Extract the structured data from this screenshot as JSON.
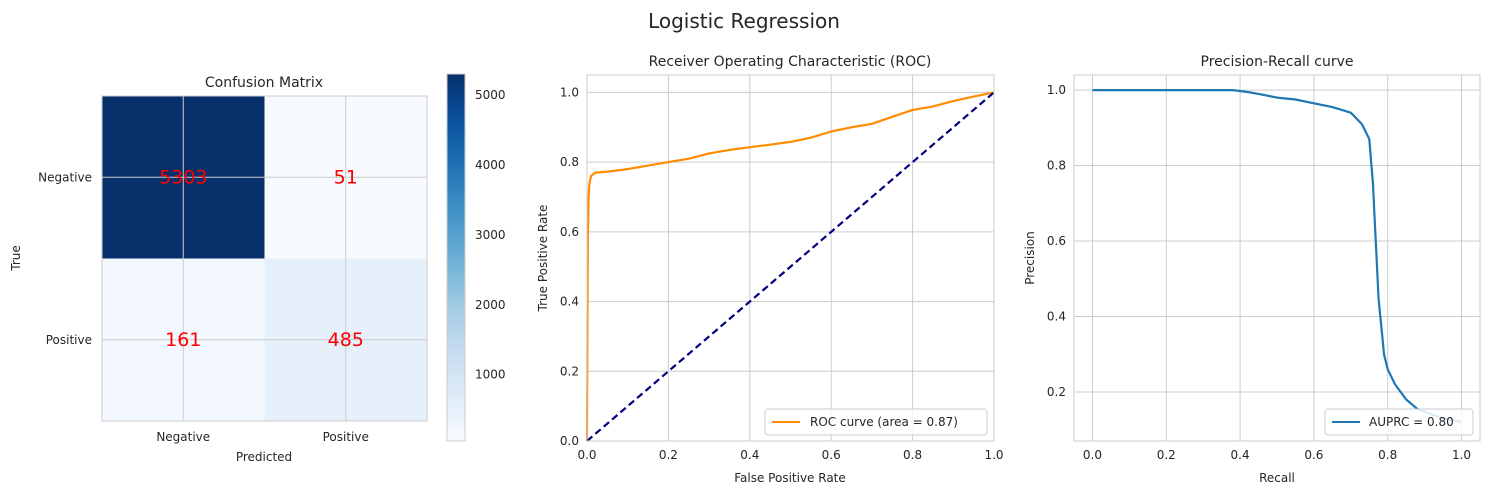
{
  "suptitle": "Logistic Regression",
  "chart_data": [
    {
      "type": "heatmap",
      "title": "Confusion Matrix",
      "xlabel": "Predicted",
      "ylabel": "True",
      "x_categories": [
        "Negative",
        "Positive"
      ],
      "y_categories": [
        "Negative",
        "Positive"
      ],
      "values": [
        [
          5303,
          51
        ],
        [
          161,
          485
        ]
      ],
      "colormap": "Blues",
      "value_text_color": "#ff0000",
      "colorbar": {
        "vmin": 51,
        "vmax": 5303,
        "ticks": [
          "1000",
          "2000",
          "3000",
          "4000",
          "5000"
        ]
      }
    },
    {
      "type": "line",
      "title": "Receiver Operating Characteristic (ROC)",
      "xlabel": "False Positive Rate",
      "ylabel": "True Positive Rate",
      "xlim": [
        0,
        1
      ],
      "ylim": [
        0,
        1.05
      ],
      "x_ticks": [
        "0.0",
        "0.2",
        "0.4",
        "0.6",
        "0.8",
        "1.0"
      ],
      "y_ticks": [
        "0.0",
        "0.2",
        "0.4",
        "0.6",
        "0.8",
        "1.0"
      ],
      "grid": true,
      "legend_position": "lower-right",
      "series": [
        {
          "name": "ROC curve (area = 0.87)",
          "color": "#ff8c00",
          "x": [
            0,
            0.002,
            0.004,
            0.006,
            0.01,
            0.02,
            0.05,
            0.1,
            0.15,
            0.2,
            0.25,
            0.3,
            0.35,
            0.4,
            0.45,
            0.5,
            0.55,
            0.6,
            0.65,
            0.7,
            0.75,
            0.8,
            0.85,
            0.9,
            0.95,
            1.0
          ],
          "y": [
            0,
            0.57,
            0.7,
            0.74,
            0.76,
            0.77,
            0.773,
            0.78,
            0.79,
            0.8,
            0.81,
            0.825,
            0.835,
            0.843,
            0.85,
            0.858,
            0.87,
            0.888,
            0.9,
            0.91,
            0.93,
            0.95,
            0.96,
            0.975,
            0.988,
            1.0
          ]
        },
        {
          "color": "#000080",
          "dashed": true,
          "x": [
            0,
            1
          ],
          "y": [
            0,
            1
          ]
        }
      ]
    },
    {
      "type": "line",
      "title": "Precision-Recall curve",
      "xlabel": "Recall",
      "ylabel": "Precision",
      "xlim": [
        -0.05,
        1.05
      ],
      "ylim": [
        0.07,
        1.04
      ],
      "x_ticks": [
        "0.0",
        "0.2",
        "0.4",
        "0.6",
        "0.8",
        "1.0"
      ],
      "y_ticks": [
        "0.2",
        "0.4",
        "0.6",
        "0.8",
        "1.0"
      ],
      "grid": true,
      "legend_position": "lower-right",
      "series": [
        {
          "name": "AUPRC = 0.80",
          "color": "#1f77b4",
          "x": [
            0.0,
            0.1,
            0.2,
            0.3,
            0.38,
            0.42,
            0.45,
            0.5,
            0.55,
            0.6,
            0.65,
            0.7,
            0.73,
            0.75,
            0.76,
            0.765,
            0.77,
            0.775,
            0.78,
            0.785,
            0.79,
            0.8,
            0.82,
            0.85,
            0.88,
            0.92,
            0.95,
            0.98,
            1.0
          ],
          "y": [
            1.0,
            1.0,
            1.0,
            1.0,
            1.0,
            0.995,
            0.99,
            0.98,
            0.975,
            0.965,
            0.955,
            0.94,
            0.91,
            0.87,
            0.75,
            0.65,
            0.55,
            0.45,
            0.4,
            0.35,
            0.3,
            0.26,
            0.22,
            0.18,
            0.155,
            0.14,
            0.13,
            0.125,
            0.12
          ]
        }
      ]
    }
  ]
}
